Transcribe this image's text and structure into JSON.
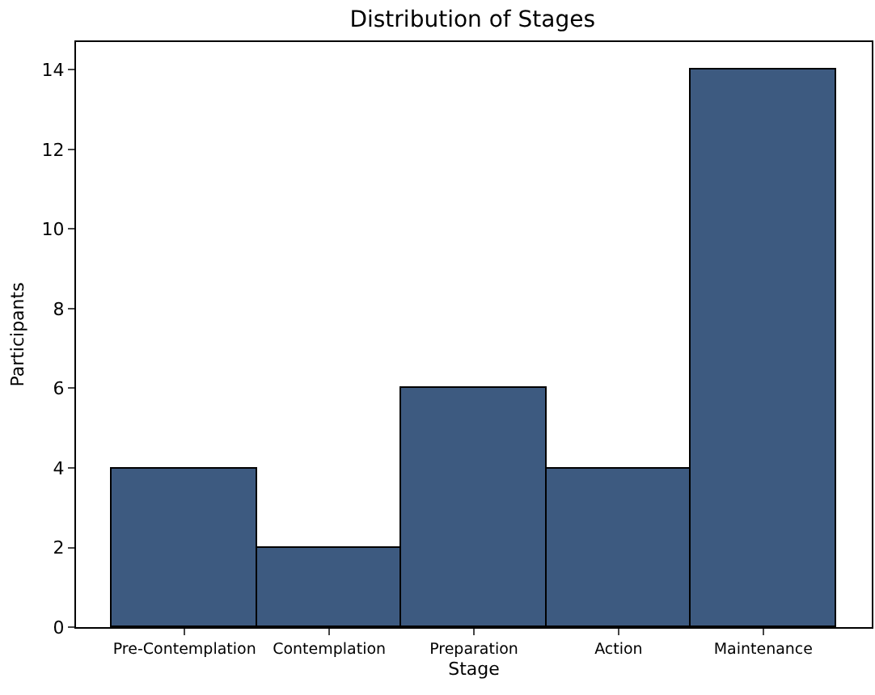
{
  "chart_data": {
    "type": "bar",
    "title": "Distribution of Stages",
    "xlabel": "Stage",
    "ylabel": "Participants",
    "categories": [
      "Pre-Contemplation",
      "Contemplation",
      "Preparation",
      "Action",
      "Maintenance"
    ],
    "values": [
      4,
      2,
      6,
      4,
      14
    ],
    "color": "#3d5a80",
    "ylim": [
      0,
      14.7
    ],
    "yticks": [
      0,
      2,
      4,
      6,
      8,
      10,
      12,
      14
    ],
    "grid": false
  }
}
